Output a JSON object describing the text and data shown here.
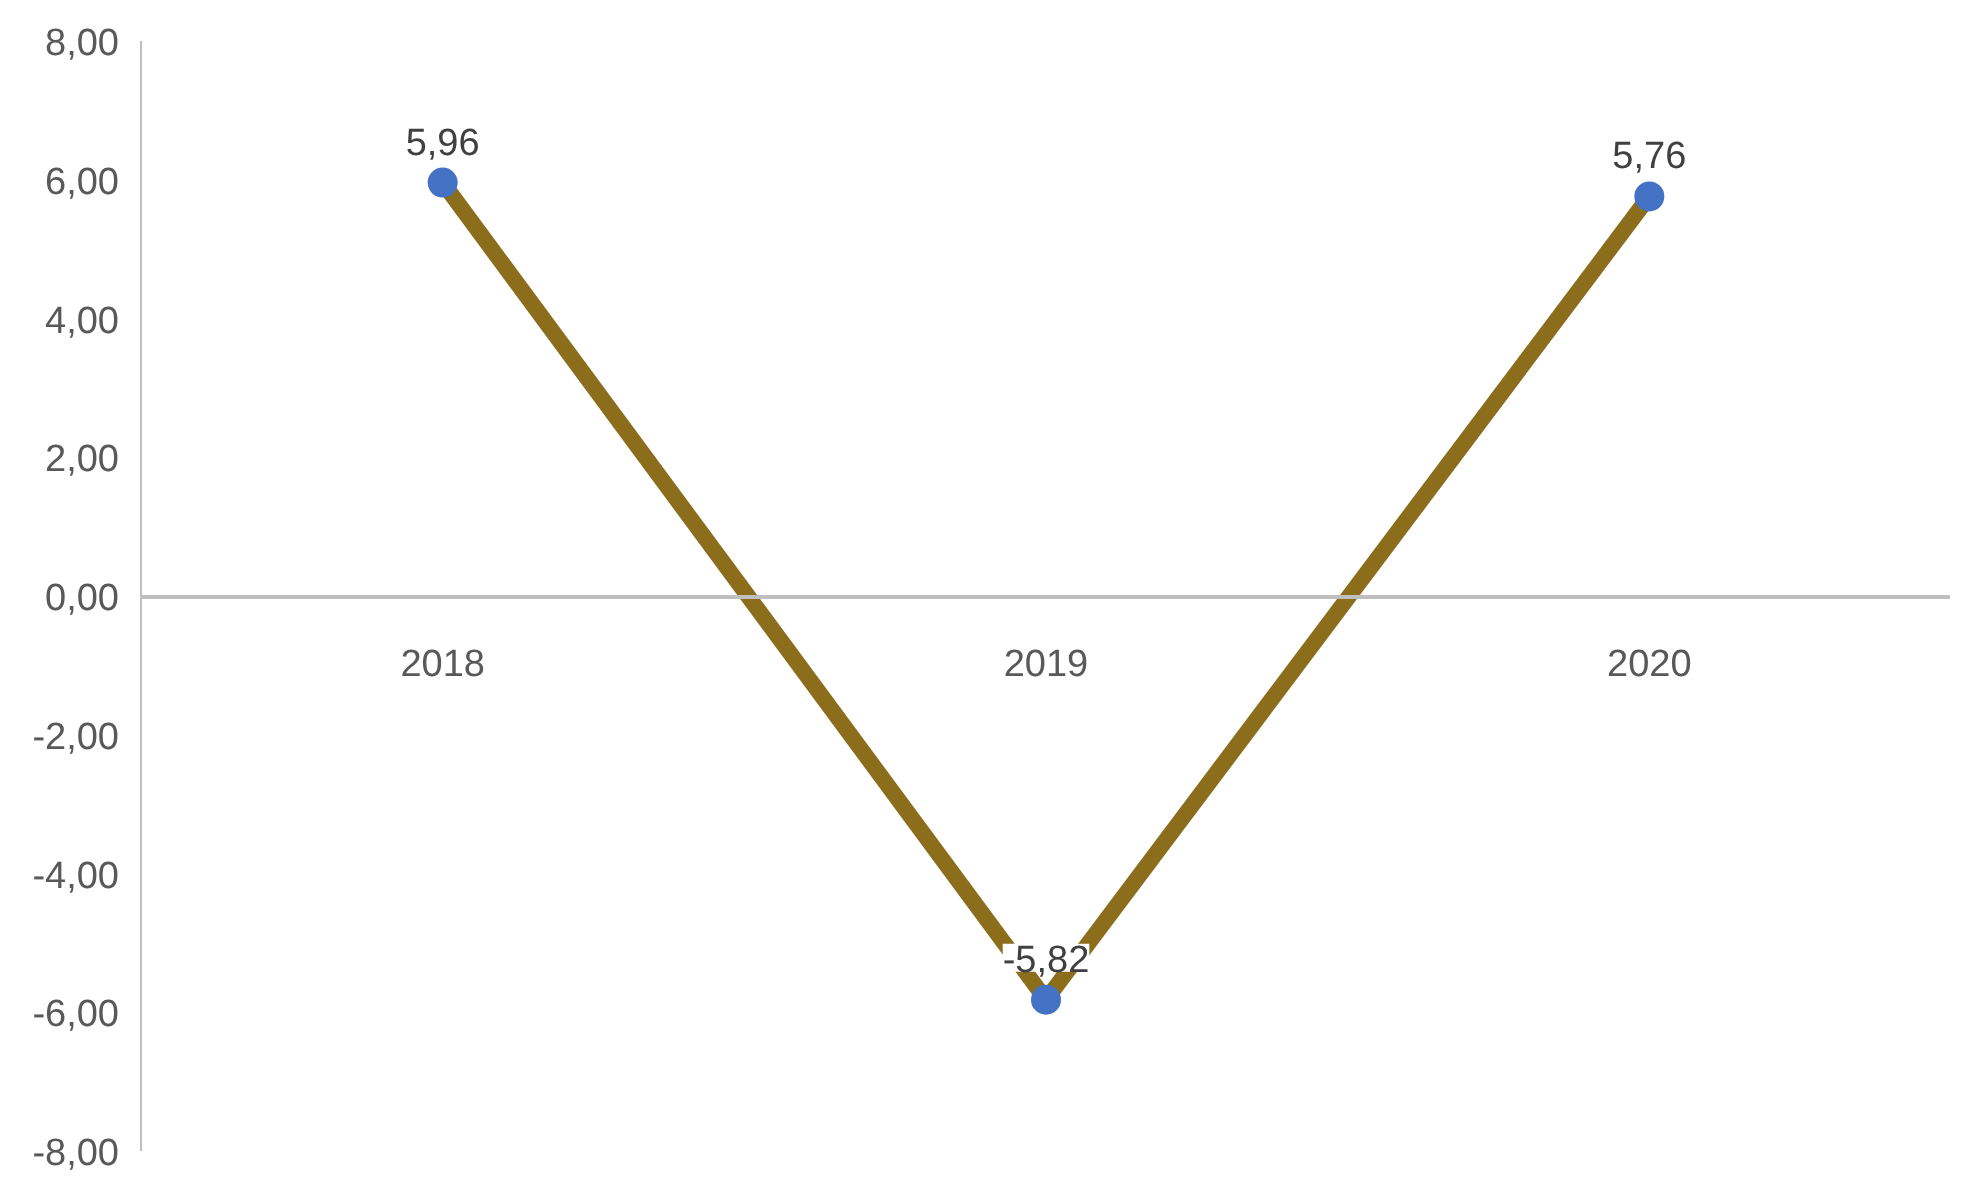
{
  "chart_data": {
    "type": "line",
    "categories": [
      "2018",
      "2019",
      "2020"
    ],
    "series": [
      {
        "color": "#8b6d1c",
        "colors": [
          "#4472c4",
          "#4472c4",
          "#4472c4"
        ],
        "values": [
          5.96,
          -5.82,
          5.76
        ],
        "value_labels": [
          "5,96",
          "-5,82",
          "5,76"
        ]
      }
    ],
    "ylim": [
      -8,
      8
    ],
    "yticks": [
      {
        "value": -8,
        "label": "-8,00"
      },
      {
        "value": -6,
        "label": "-6,00"
      },
      {
        "value": -4,
        "label": "-4,00"
      },
      {
        "value": -2,
        "label": "-2,00"
      },
      {
        "value": 0,
        "label": "0,00"
      },
      {
        "value": 2,
        "label": "2,00"
      },
      {
        "value": 4,
        "label": "4,00"
      },
      {
        "value": 6,
        "label": "6,00"
      },
      {
        "value": 8,
        "label": "8,00"
      }
    ],
    "grid": false,
    "marker": "circle",
    "line_style": "solid"
  }
}
